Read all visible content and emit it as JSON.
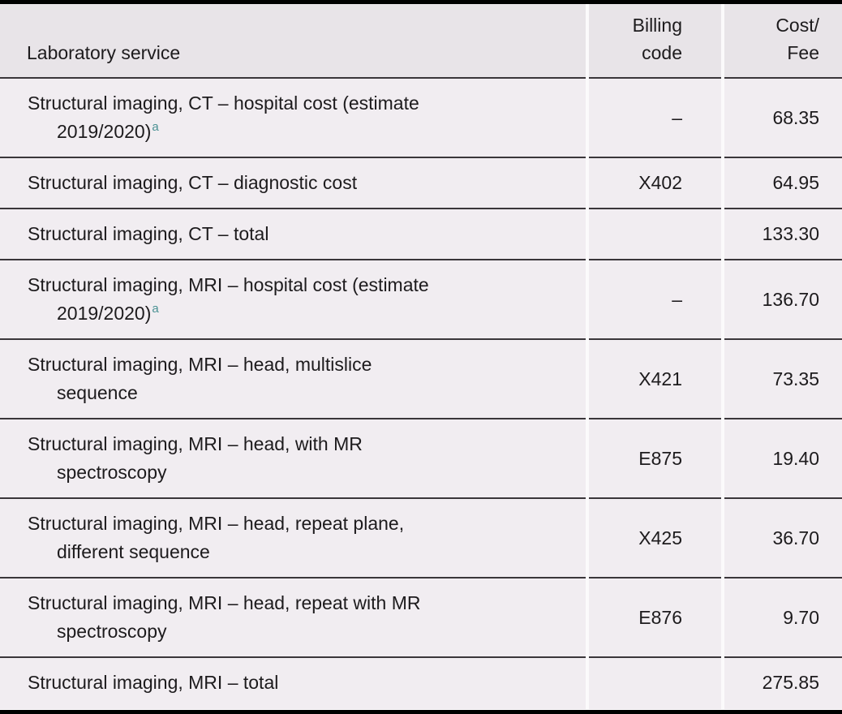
{
  "table": {
    "headers": {
      "service": "Laboratory service",
      "billing_code": "Billing\ncode",
      "cost_fee": "Cost/\nFee"
    },
    "rows": [
      {
        "service": "Structural imaging, CT – hospital cost (estimate\n2019/2020)",
        "footnote": "a",
        "code": "–",
        "cost": "68.35"
      },
      {
        "service": "Structural imaging, CT – diagnostic cost",
        "footnote": "",
        "code": "X402",
        "cost": "64.95"
      },
      {
        "service": "Structural imaging, CT – total",
        "footnote": "",
        "code": "",
        "cost": "133.30"
      },
      {
        "service": "Structural imaging, MRI – hospital cost (estimate\n2019/2020)",
        "footnote": "a",
        "code": "–",
        "cost": "136.70"
      },
      {
        "service": "Structural imaging, MRI – head, multislice\nsequence",
        "footnote": "",
        "code": "X421",
        "cost": "73.35"
      },
      {
        "service": "Structural imaging, MRI – head, with MR\nspectroscopy",
        "footnote": "",
        "code": "E875",
        "cost": "19.40"
      },
      {
        "service": "Structural imaging, MRI – head, repeat plane,\ndifferent sequence",
        "footnote": "",
        "code": "X425",
        "cost": "36.70"
      },
      {
        "service": "Structural imaging, MRI – head, repeat with MR\nspectroscopy",
        "footnote": "",
        "code": "E876",
        "cost": "9.70"
      },
      {
        "service": "Structural imaging, MRI – total",
        "footnote": "",
        "code": "",
        "cost": "275.85"
      }
    ],
    "colors": {
      "footnote_link": "#4A9193",
      "header_background": "#E8E4E8",
      "row_background": "#F1EDF1",
      "rule_line": "#3A363A",
      "frame_border": "#000000"
    }
  }
}
